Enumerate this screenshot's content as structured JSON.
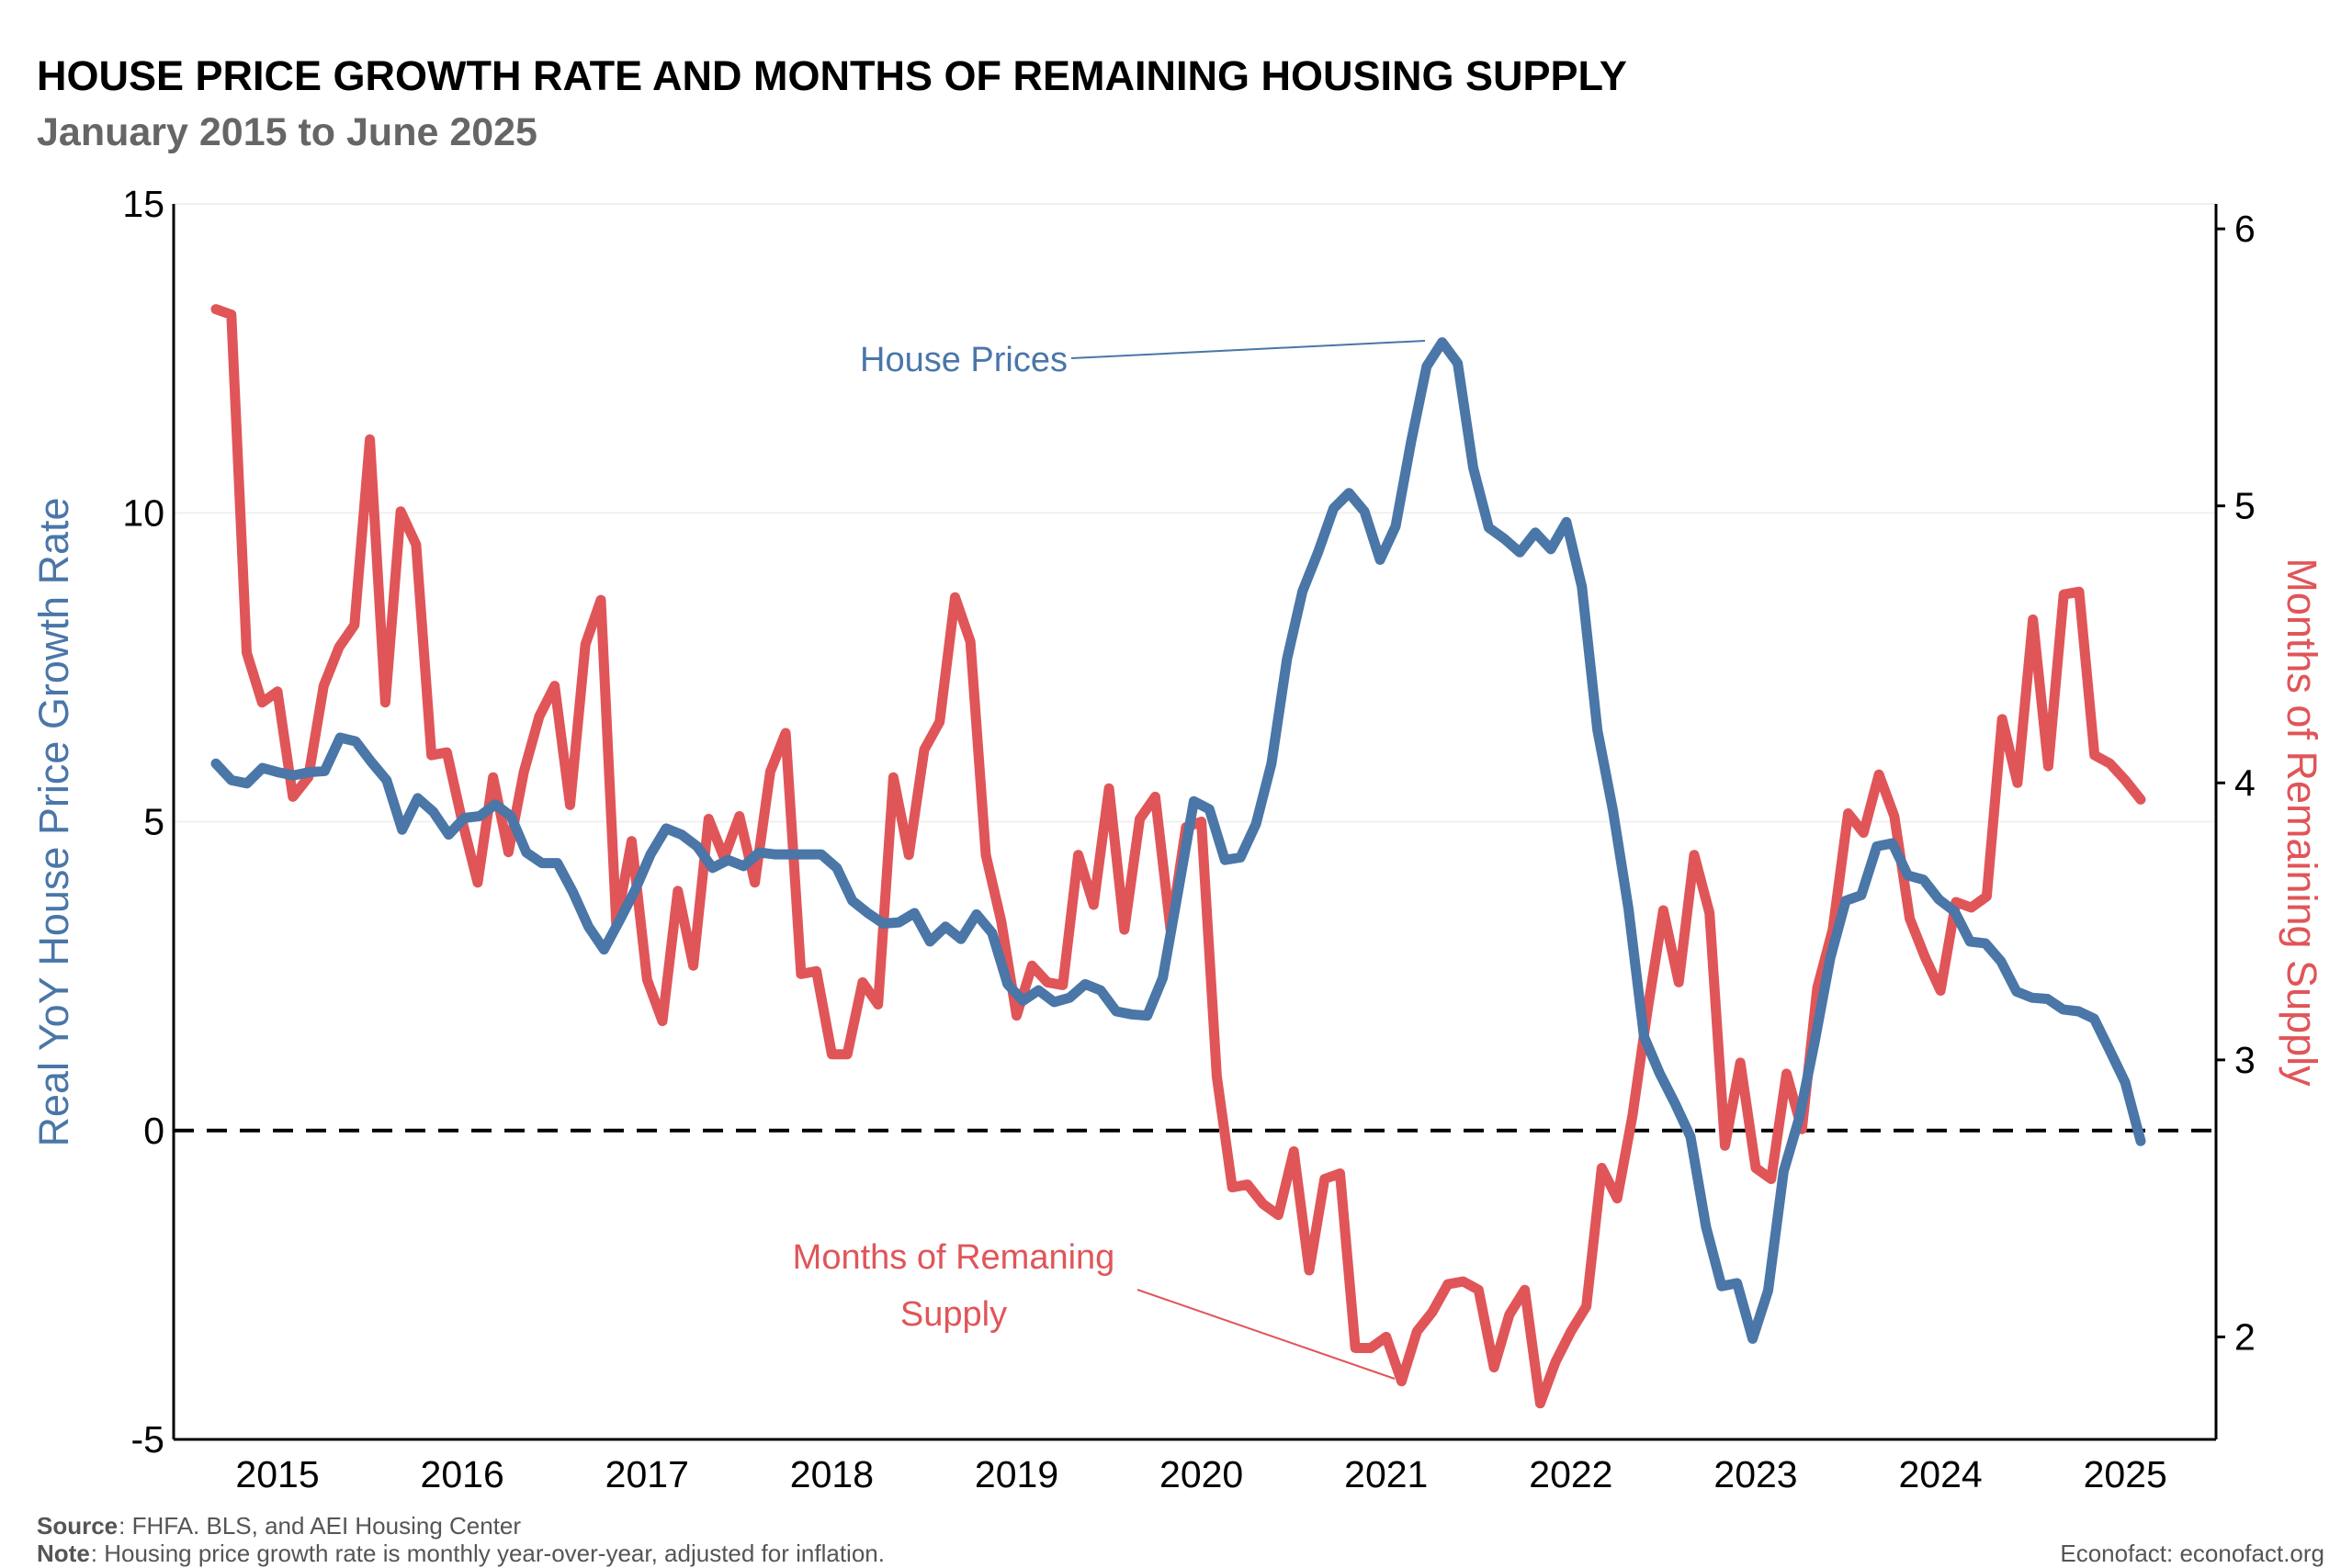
{
  "chart_data": {
    "type": "line",
    "title": "HOUSE PRICE GROWTH RATE AND MONTHS OF REMAINING HOUSING SUPPLY",
    "subtitle": "January 2015 to June 2025",
    "x_range": [
      "2015-01",
      "2025-06"
    ],
    "x_frequency": "monthly",
    "x_tick_labels": [
      "2015",
      "2016",
      "2017",
      "2018",
      "2019",
      "2020",
      "2021",
      "2022",
      "2023",
      "2024",
      "2025"
    ],
    "left_axis": {
      "label": "Real YoY House Price Growth Rate",
      "ylim": [
        -5,
        15
      ],
      "ticks": [
        "-5",
        "0",
        "5",
        "10",
        "15"
      ],
      "color": "#4a76a8"
    },
    "right_axis": {
      "label": "Months of Remaining Supply",
      "ylim": [
        1.63,
        6.09
      ],
      "ticks": [
        "2",
        "3",
        "4",
        "5",
        "6"
      ],
      "color": "#e05558"
    },
    "reference_line": {
      "axis": "left",
      "value": 0,
      "style": "dashed",
      "color": "#000000"
    },
    "grid": "horizontal, faint",
    "series": [
      {
        "name": "House Prices",
        "axis": "left",
        "color": "#4a76a8",
        "values": [
          5.94,
          5.67,
          5.62,
          5.87,
          5.8,
          5.75,
          5.8,
          5.82,
          6.36,
          6.3,
          5.97,
          5.67,
          4.87,
          5.38,
          5.16,
          4.79,
          5.06,
          5.09,
          5.28,
          5.09,
          4.5,
          4.33,
          4.33,
          3.86,
          3.3,
          2.93,
          3.4,
          3.89,
          4.47,
          4.89,
          4.79,
          4.6,
          4.25,
          4.38,
          4.28,
          4.5,
          4.47,
          4.47,
          4.47,
          4.47,
          4.25,
          3.72,
          3.52,
          3.35,
          3.37,
          3.52,
          3.06,
          3.3,
          3.1,
          3.5,
          3.2,
          2.37,
          2.1,
          2.27,
          2.08,
          2.15,
          2.37,
          2.27,
          1.93,
          1.88,
          1.86,
          2.47,
          3.89,
          5.33,
          5.2,
          4.38,
          4.42,
          4.96,
          5.94,
          7.63,
          8.73,
          9.36,
          10.07,
          10.32,
          10.02,
          9.24,
          9.78,
          11.15,
          12.37,
          12.76,
          12.42,
          10.73,
          9.76,
          9.58,
          9.36,
          9.68,
          9.41,
          9.85,
          8.8,
          6.48,
          5.18,
          3.59,
          1.52,
          0.93,
          0.44,
          -0.1,
          -1.56,
          -2.52,
          -2.47,
          -3.37,
          -2.59,
          -0.66,
          0.2,
          1.44,
          2.79,
          3.72,
          3.81,
          4.6,
          4.65,
          4.13,
          4.06,
          3.74,
          3.55,
          3.06,
          3.03,
          2.74,
          2.25,
          2.15,
          2.13,
          1.96,
          1.93,
          1.81,
          1.3,
          0.78,
          -0.17
        ]
      },
      {
        "name": "Months of Remaning Supply",
        "axis": "right",
        "color": "#e05558",
        "values": [
          5.71,
          5.69,
          4.47,
          4.29,
          4.33,
          3.95,
          4.02,
          4.35,
          4.49,
          4.57,
          5.24,
          4.29,
          4.98,
          4.86,
          4.1,
          4.11,
          3.86,
          3.64,
          4.02,
          3.75,
          4.04,
          4.24,
          4.35,
          3.92,
          4.5,
          4.66,
          3.49,
          3.79,
          3.29,
          3.14,
          3.61,
          3.34,
          3.87,
          3.73,
          3.88,
          3.64,
          4.04,
          4.18,
          3.31,
          3.32,
          3.02,
          3.02,
          3.28,
          3.2,
          4.02,
          3.74,
          4.12,
          4.22,
          4.67,
          4.51,
          3.74,
          3.5,
          3.16,
          3.34,
          3.28,
          3.27,
          3.74,
          3.56,
          3.98,
          3.47,
          3.87,
          3.95,
          3.47,
          3.84,
          3.86,
          2.94,
          2.54,
          2.55,
          2.48,
          2.44,
          2.67,
          2.24,
          2.57,
          2.59,
          1.96,
          1.96,
          2.0,
          1.84,
          2.02,
          2.09,
          2.19,
          2.2,
          2.17,
          1.89,
          2.08,
          2.17,
          1.76,
          1.91,
          2.02,
          2.11,
          2.61,
          2.5,
          2.8,
          3.19,
          3.54,
          3.28,
          3.74,
          3.53,
          2.69,
          2.99,
          2.61,
          2.57,
          2.95,
          2.75,
          3.26,
          3.47,
          3.89,
          3.82,
          4.03,
          3.88,
          3.51,
          3.37,
          3.25,
          3.57,
          3.55,
          3.59,
          4.23,
          4.0,
          4.59,
          4.06,
          4.68,
          4.69,
          4.1,
          4.07,
          4.01,
          3.94
        ]
      }
    ],
    "annotations": {
      "house_prices": "House Prices",
      "supply_line1": "Months of Remaning",
      "supply_line2": "Supply"
    }
  },
  "footer": {
    "source_label": "Source",
    "source_text": ": FHFA. BLS, and AEI Housing Center",
    "note_label": "Note",
    "note_text": ": Housing price growth rate is monthly year-over-year, adjusted for inflation.",
    "credit": "Econofact: econofact.org"
  }
}
